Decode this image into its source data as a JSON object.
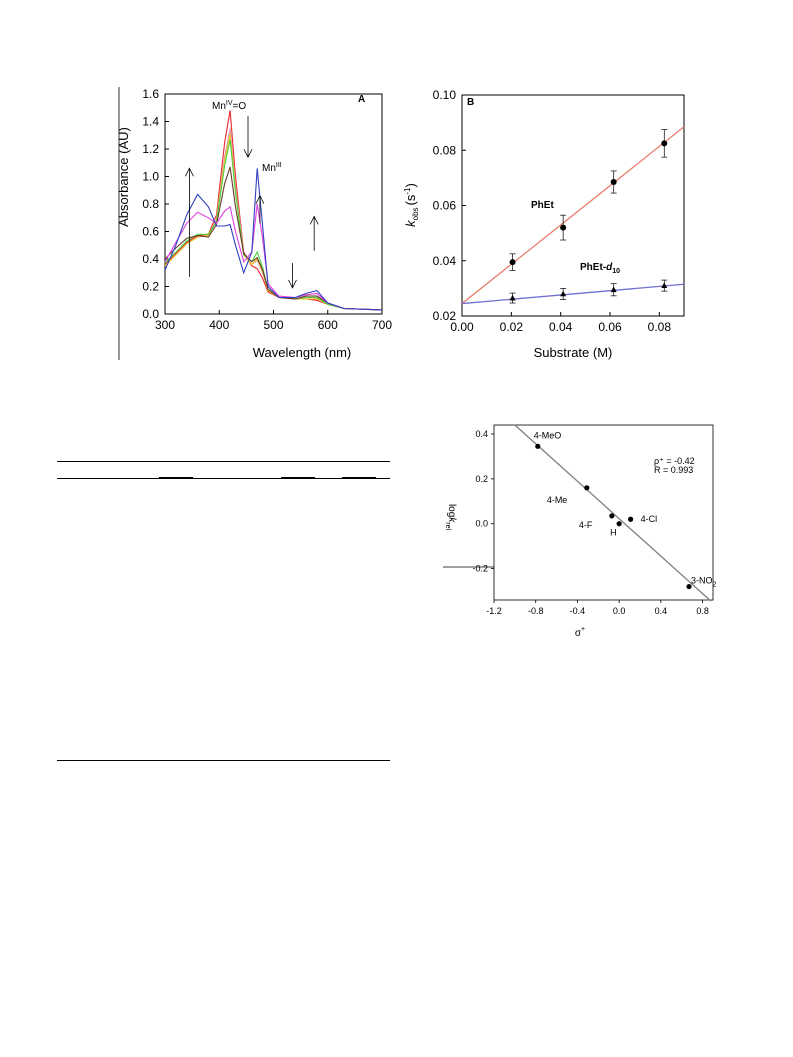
{
  "chart_data": [
    {
      "type": "line",
      "panel_label": "A",
      "xlabel": "Wavelength (nm)",
      "ylabel": "Absorbance (AU)",
      "xlim": [
        300,
        700
      ],
      "ylim": [
        0,
        1.6
      ],
      "xticks": [
        300,
        400,
        500,
        600,
        700
      ],
      "yticks": [
        0.0,
        0.2,
        0.4,
        0.6,
        0.8,
        1.0,
        1.2,
        1.4,
        1.6
      ],
      "ytick_labels": [
        "0.0",
        "0.2",
        "0.4",
        "0.6",
        "0.8",
        "1.0",
        "1.2",
        "1.4",
        "1.6"
      ],
      "annotations": {
        "mniv_base": "Mn",
        "mniv_sup": "IV",
        "mniv_tail": "=O",
        "mniii_base": "Mn",
        "mniii_sup": "III"
      },
      "arrows": [
        {
          "x": 345,
          "from": 0.27,
          "to": 1.06
        },
        {
          "x": 453,
          "from": 1.44,
          "to": 1.14
        },
        {
          "x": 475,
          "from": 0.66,
          "to": 0.86
        },
        {
          "x": 535,
          "from": 0.37,
          "to": 0.19
        },
        {
          "x": 575,
          "from": 0.46,
          "to": 0.71
        }
      ],
      "series": [
        {
          "color": "#e8262e",
          "points": [
            [
              300,
              0.36
            ],
            [
              320,
              0.44
            ],
            [
              340,
              0.52
            ],
            [
              360,
              0.57
            ],
            [
              380,
              0.58
            ],
            [
              395,
              0.72
            ],
            [
              410,
              1.25
            ],
            [
              420,
              1.48
            ],
            [
              430,
              1.0
            ],
            [
              445,
              0.45
            ],
            [
              460,
              0.35
            ],
            [
              470,
              0.33
            ],
            [
              480,
              0.26
            ],
            [
              490,
              0.16
            ],
            [
              510,
              0.12
            ],
            [
              540,
              0.11
            ],
            [
              560,
              0.11
            ],
            [
              580,
              0.1
            ],
            [
              600,
              0.07
            ],
            [
              630,
              0.04
            ],
            [
              700,
              0.03
            ]
          ]
        },
        {
          "color": "#e0a0c0",
          "points": [
            [
              300,
              0.35
            ],
            [
              320,
              0.43
            ],
            [
              340,
              0.51
            ],
            [
              360,
              0.56
            ],
            [
              380,
              0.57
            ],
            [
              395,
              0.69
            ],
            [
              410,
              1.15
            ],
            [
              420,
              1.35
            ],
            [
              430,
              0.93
            ],
            [
              445,
              0.44
            ],
            [
              460,
              0.36
            ],
            [
              470,
              0.39
            ],
            [
              480,
              0.3
            ],
            [
              490,
              0.17
            ],
            [
              510,
              0.12
            ],
            [
              540,
              0.11
            ],
            [
              560,
              0.11
            ],
            [
              580,
              0.11
            ],
            [
              600,
              0.07
            ],
            [
              630,
              0.04
            ],
            [
              700,
              0.03
            ]
          ]
        },
        {
          "color": "#f0c020",
          "points": [
            [
              300,
              0.35
            ],
            [
              320,
              0.43
            ],
            [
              340,
              0.51
            ],
            [
              360,
              0.56
            ],
            [
              380,
              0.57
            ],
            [
              395,
              0.68
            ],
            [
              410,
              1.12
            ],
            [
              420,
              1.31
            ],
            [
              430,
              0.9
            ],
            [
              445,
              0.43
            ],
            [
              460,
              0.36
            ],
            [
              470,
              0.4
            ],
            [
              480,
              0.31
            ],
            [
              490,
              0.17
            ],
            [
              510,
              0.12
            ],
            [
              540,
              0.11
            ],
            [
              560,
              0.11
            ],
            [
              580,
              0.11
            ],
            [
              600,
              0.07
            ],
            [
              630,
              0.04
            ],
            [
              700,
              0.03
            ]
          ]
        },
        {
          "color": "#4cd040",
          "points": [
            [
              300,
              0.37
            ],
            [
              320,
              0.45
            ],
            [
              340,
              0.53
            ],
            [
              360,
              0.58
            ],
            [
              380,
              0.58
            ],
            [
              395,
              0.67
            ],
            [
              410,
              1.08
            ],
            [
              420,
              1.27
            ],
            [
              430,
              0.88
            ],
            [
              445,
              0.43
            ],
            [
              460,
              0.38
            ],
            [
              470,
              0.45
            ],
            [
              480,
              0.34
            ],
            [
              490,
              0.18
            ],
            [
              510,
              0.12
            ],
            [
              540,
              0.11
            ],
            [
              560,
              0.12
            ],
            [
              580,
              0.12
            ],
            [
              600,
              0.07
            ],
            [
              630,
              0.04
            ],
            [
              700,
              0.03
            ]
          ]
        },
        {
          "color": "#6a3a2a",
          "points": [
            [
              300,
              0.4
            ],
            [
              320,
              0.48
            ],
            [
              340,
              0.55
            ],
            [
              360,
              0.57
            ],
            [
              380,
              0.56
            ],
            [
              395,
              0.65
            ],
            [
              410,
              0.95
            ],
            [
              420,
              1.07
            ],
            [
              430,
              0.78
            ],
            [
              445,
              0.44
            ],
            [
              460,
              0.38
            ],
            [
              470,
              0.41
            ],
            [
              480,
              0.32
            ],
            [
              490,
              0.18
            ],
            [
              510,
              0.12
            ],
            [
              540,
              0.11
            ],
            [
              560,
              0.13
            ],
            [
              580,
              0.13
            ],
            [
              600,
              0.08
            ],
            [
              630,
              0.04
            ],
            [
              700,
              0.03
            ]
          ]
        },
        {
          "color": "#e040e0",
          "points": [
            [
              300,
              0.38
            ],
            [
              320,
              0.52
            ],
            [
              340,
              0.66
            ],
            [
              360,
              0.74
            ],
            [
              380,
              0.7
            ],
            [
              395,
              0.66
            ],
            [
              410,
              0.75
            ],
            [
              420,
              0.78
            ],
            [
              430,
              0.6
            ],
            [
              445,
              0.38
            ],
            [
              460,
              0.45
            ],
            [
              470,
              0.8
            ],
            [
              480,
              0.55
            ],
            [
              490,
              0.22
            ],
            [
              510,
              0.13
            ],
            [
              540,
              0.12
            ],
            [
              560,
              0.14
            ],
            [
              580,
              0.15
            ],
            [
              600,
              0.08
            ],
            [
              630,
              0.04
            ],
            [
              700,
              0.03
            ]
          ]
        },
        {
          "color": "#3040c0",
          "points": [
            [
              300,
              0.32
            ],
            [
              320,
              0.5
            ],
            [
              340,
              0.72
            ],
            [
              360,
              0.87
            ],
            [
              380,
              0.78
            ],
            [
              395,
              0.64
            ],
            [
              410,
              0.64
            ],
            [
              420,
              0.65
            ],
            [
              430,
              0.5
            ],
            [
              445,
              0.3
            ],
            [
              460,
              0.45
            ],
            [
              470,
              1.06
            ],
            [
              480,
              0.64
            ],
            [
              490,
              0.2
            ],
            [
              510,
              0.12
            ],
            [
              540,
              0.12
            ],
            [
              560,
              0.15
            ],
            [
              580,
              0.17
            ],
            [
              600,
              0.08
            ],
            [
              630,
              0.04
            ],
            [
              700,
              0.03
            ]
          ]
        }
      ]
    },
    {
      "type": "scatter",
      "panel_label": "B",
      "xlabel": "Substrate (M)",
      "ylabel_k": "k",
      "ylabel_sub": "obs",
      "ylabel_unit": "(s",
      "ylabel_exp": "-1",
      "ylabel_close": ")",
      "xlim": [
        0,
        0.09
      ],
      "ylim": [
        0.02,
        0.1
      ],
      "xticks": [
        0,
        0.02,
        0.04,
        0.06,
        0.08
      ],
      "xtick_labels": [
        "0.00",
        "0.02",
        "0.04",
        "0.06",
        "0.08"
      ],
      "yticks": [
        0.02,
        0.04,
        0.06,
        0.08,
        0.1
      ],
      "ytick_labels": [
        "0.02",
        "0.04",
        "0.06",
        "0.08",
        "0.10"
      ],
      "series": [
        {
          "label": "PhEt",
          "marker": "circle",
          "line_color": "#e88070",
          "x": [
            0.0205,
            0.041,
            0.0615,
            0.082
          ],
          "y": [
            0.0395,
            0.052,
            0.0685,
            0.0825
          ],
          "err": [
            0.003,
            0.0045,
            0.004,
            0.005
          ],
          "fit": [
            [
              0,
              0.0245
            ],
            [
              0.09,
              0.0885
            ]
          ]
        },
        {
          "label_base": "PhEt-",
          "label_italic": "d",
          "label_sub": "10",
          "marker": "triangle",
          "line_color": "#7070d0",
          "x": [
            0.0205,
            0.041,
            0.0615,
            0.082
          ],
          "y": [
            0.0265,
            0.028,
            0.0295,
            0.031
          ],
          "err": [
            0.0018,
            0.002,
            0.0022,
            0.002
          ],
          "fit": [
            [
              0,
              0.0245
            ],
            [
              0.09,
              0.0315
            ]
          ]
        }
      ]
    },
    {
      "type": "scatter",
      "xlabel_base": "σ",
      "xlabel_sup": "+",
      "ylabel_base": "log",
      "ylabel_k": "k",
      "ylabel_sub": "rel",
      "xlim": [
        -1.2,
        0.9
      ],
      "ylim": [
        -0.34,
        0.44
      ],
      "xticks": [
        -1.2,
        -0.8,
        -0.4,
        0.0,
        0.4,
        0.8
      ],
      "xtick_labels": [
        "-1.2",
        "-0.8",
        "-0.4",
        "0.0",
        "0.4",
        "0.8"
      ],
      "yticks": [
        -0.2,
        0.0,
        0.2,
        0.4
      ],
      "ytick_labels": [
        "-0.2",
        "0.0",
        "0.2",
        "0.4"
      ],
      "rho_text": "ρ⁺ = -0.42",
      "r_text": "R = 0.993",
      "fit": [
        [
          -1.0,
          0.44
        ],
        [
          0.88,
          -0.345
        ]
      ],
      "points": [
        {
          "label": "4-MeO",
          "x": -0.78,
          "y": 0.345
        },
        {
          "label": "4-Me",
          "x": -0.31,
          "y": 0.16
        },
        {
          "label": "4-F",
          "x": -0.07,
          "y": 0.035
        },
        {
          "label": "H",
          "x": 0.0,
          "y": 0.0
        },
        {
          "label": "4-Cl",
          "x": 0.11,
          "y": 0.02
        },
        {
          "label_base": "3-NO",
          "label_sub": "2",
          "x": 0.67,
          "y": -0.28
        }
      ]
    }
  ]
}
